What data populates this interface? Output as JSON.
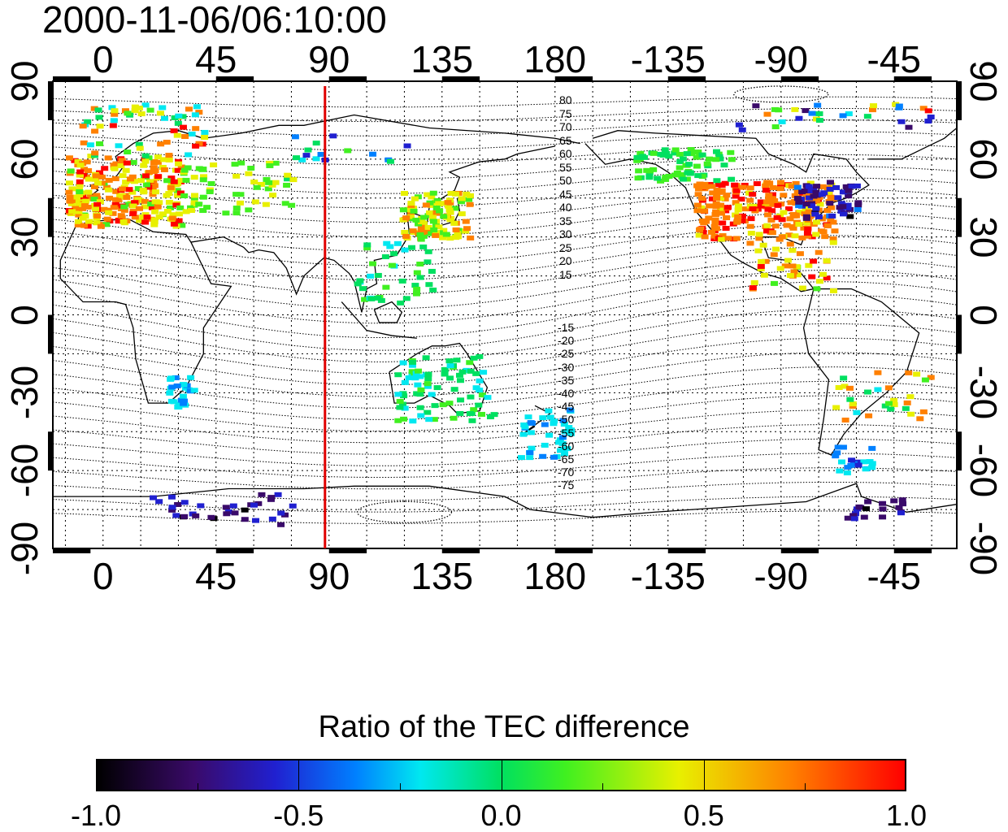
{
  "title": "2000-11-06/06:10:00",
  "axes": {
    "lon_ticks": [
      "0",
      "45",
      "90",
      "135",
      "180",
      "-135",
      "-90",
      "-45"
    ],
    "lat_ticks_left": [
      "90",
      "60",
      "30",
      "0",
      "-30",
      "-60",
      "-90"
    ],
    "lat_ticks_right": [
      "90",
      "60",
      "30",
      "0",
      "-30",
      "-60",
      "-90"
    ]
  },
  "marker_line": {
    "longitude": 90,
    "color": "#e00000"
  },
  "contour_labels_north": [
    "80",
    "75",
    "70",
    "65",
    "60",
    "55",
    "50",
    "45",
    "40",
    "35",
    "30",
    "25",
    "20",
    "15"
  ],
  "contour_labels_south": [
    "-15",
    "-20",
    "-25",
    "-30",
    "-35",
    "-40",
    "-45",
    "-50",
    "-55",
    "-60",
    "-65",
    "-70",
    "-75"
  ],
  "colorbar": {
    "title": "Ratio of the TEC difference",
    "ticks": [
      "-1.0",
      "-0.5",
      "0.0",
      "0.5",
      "1.0"
    ],
    "colors": [
      "#000000",
      "#3a0a6a",
      "#2020d0",
      "#0080ff",
      "#00e8f0",
      "#00e060",
      "#40f020",
      "#e8f000",
      "#ff8000",
      "#ff0000"
    ]
  }
}
